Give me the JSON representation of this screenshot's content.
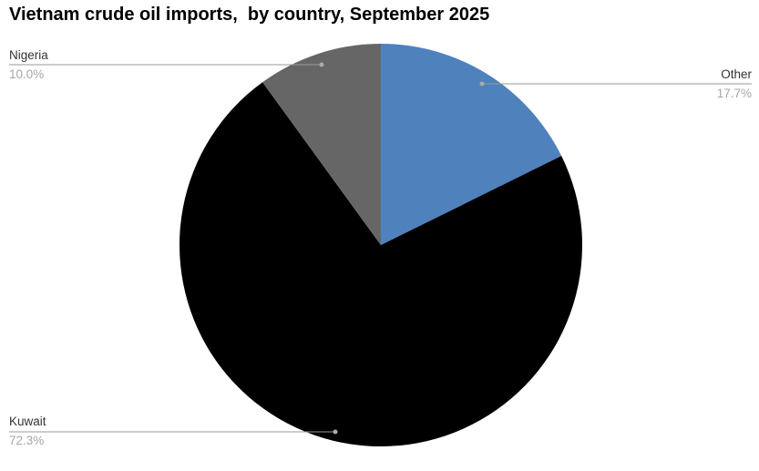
{
  "chart_data": {
    "type": "pie",
    "title": "Vietnam crude oil imports,  by country, September 2025",
    "start_angle": "top",
    "direction": "clockwise",
    "legend_position": "none",
    "labels_style": "outside-callouts-with-leader-lines",
    "slices": [
      {
        "label": "Other",
        "value": 17.7,
        "percent_label": "17.7%",
        "color": "#4f81bd"
      },
      {
        "label": "Kuwait",
        "value": 72.3,
        "percent_label": "72.3%",
        "color": "#000000"
      },
      {
        "label": "Nigeria",
        "value": 10.0,
        "percent_label": "10.0%",
        "color": "#666666"
      }
    ],
    "colors": {
      "label_name": "#333333",
      "label_percent": "#a6a6a6",
      "leader_line": "#999999",
      "leader_dot": "#aaaaaa",
      "background": "#ffffff"
    }
  }
}
